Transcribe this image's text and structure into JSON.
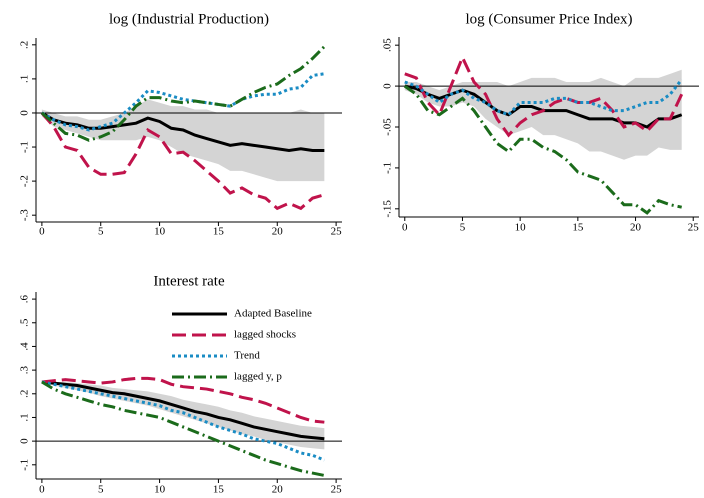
{
  "chart_data": [
    {
      "type": "line",
      "title": "log (Industrial Production)",
      "x": [
        0,
        1,
        2,
        3,
        4,
        5,
        6,
        7,
        8,
        9,
        10,
        11,
        12,
        13,
        14,
        15,
        16,
        17,
        18,
        19,
        20,
        21,
        22,
        23,
        24
      ],
      "xlim": [
        -0.5,
        25.5
      ],
      "xticks": [
        0,
        5,
        10,
        15,
        20,
        25
      ],
      "ylim": [
        -0.32,
        0.22
      ],
      "yticks": [
        {
          "value": 0.2,
          "label": ".2"
        },
        {
          "value": 0.1,
          "label": ".1"
        },
        0,
        {
          "value": -0.1,
          "label": "-.1"
        },
        {
          "value": -0.2,
          "label": "-.2"
        },
        {
          "value": -0.3,
          "label": "-.3"
        }
      ],
      "refline": 0,
      "band_color": "#d4d4d4",
      "band": {
        "upper": [
          0.01,
          0,
          -0.01,
          -0.01,
          -0.02,
          -0.02,
          -0.01,
          0.0,
          0.02,
          0.04,
          0.03,
          0.02,
          0.02,
          0.01,
          0.01,
          0.0,
          0.0,
          0.0,
          0.0,
          0.0,
          0.0,
          0.0,
          0.01,
          0.0,
          0.0
        ],
        "lower": [
          -0.01,
          -0.04,
          -0.05,
          -0.06,
          -0.07,
          -0.08,
          -0.08,
          -0.08,
          -0.08,
          -0.07,
          -0.08,
          -0.1,
          -0.12,
          -0.13,
          -0.14,
          -0.15,
          -0.17,
          -0.17,
          -0.18,
          -0.19,
          -0.2,
          -0.2,
          -0.2,
          -0.2,
          -0.2
        ]
      },
      "series": [
        {
          "color": "#000000",
          "style": "solid",
          "values": [
            0,
            -0.02,
            -0.03,
            -0.035,
            -0.045,
            -0.045,
            -0.04,
            -0.035,
            -0.03,
            -0.015,
            -0.025,
            -0.045,
            -0.05,
            -0.065,
            -0.075,
            -0.085,
            -0.095,
            -0.09,
            -0.095,
            -0.1,
            -0.105,
            -0.11,
            -0.105,
            -0.11,
            -0.11
          ]
        },
        {
          "color": "#c0134b",
          "style": "dash",
          "values": [
            0,
            -0.04,
            -0.1,
            -0.11,
            -0.16,
            -0.18,
            -0.18,
            -0.175,
            -0.12,
            -0.05,
            -0.07,
            -0.12,
            -0.115,
            -0.14,
            -0.17,
            -0.2,
            -0.235,
            -0.22,
            -0.24,
            -0.25,
            -0.28,
            -0.265,
            -0.28,
            -0.25,
            -0.24
          ]
        },
        {
          "color": "#1a8cc4",
          "style": "dot",
          "values": [
            0,
            -0.02,
            -0.035,
            -0.04,
            -0.05,
            -0.04,
            -0.03,
            0.0,
            0.03,
            0.065,
            0.06,
            0.05,
            0.04,
            0.035,
            0.03,
            0.025,
            0.02,
            0.04,
            0.05,
            0.055,
            0.055,
            0.07,
            0.075,
            0.11,
            0.115
          ]
        },
        {
          "color": "#1b6b1b",
          "style": "dashdot",
          "values": [
            0,
            -0.03,
            -0.06,
            -0.065,
            -0.08,
            -0.07,
            -0.055,
            -0.02,
            0.02,
            0.045,
            0.045,
            0.035,
            0.03,
            0.035,
            0.03,
            0.025,
            0.02,
            0.04,
            0.06,
            0.075,
            0.085,
            0.11,
            0.13,
            0.16,
            0.195
          ]
        }
      ]
    },
    {
      "type": "line",
      "title": "log (Consumer Price Index)",
      "x": [
        0,
        1,
        2,
        3,
        4,
        5,
        6,
        7,
        8,
        9,
        10,
        11,
        12,
        13,
        14,
        15,
        16,
        17,
        18,
        19,
        20,
        21,
        22,
        23,
        24
      ],
      "xlim": [
        -0.5,
        25.5
      ],
      "xticks": [
        0,
        5,
        10,
        15,
        20,
        25
      ],
      "ylim": [
        -0.16,
        0.06
      ],
      "yticks": [
        {
          "value": 0.05,
          "label": ".05"
        },
        0,
        {
          "value": -0.05,
          "label": "-.05"
        },
        {
          "value": -0.1,
          "label": "-.1"
        },
        {
          "value": -0.15,
          "label": "-.15"
        }
      ],
      "refline": 0,
      "band_color": "#d4d4d4",
      "band": {
        "upper": [
          0.005,
          0.005,
          0.0,
          -0.005,
          0.0,
          0.005,
          0.005,
          0.005,
          0.005,
          0.0,
          0.005,
          0.01,
          0.01,
          0.01,
          0.005,
          0.005,
          0.005,
          0.01,
          0.005,
          0.0,
          0.01,
          0.01,
          0.01,
          0.015,
          0.02
        ],
        "lower": [
          -0.005,
          -0.01,
          -0.02,
          -0.025,
          -0.025,
          -0.02,
          -0.025,
          -0.04,
          -0.05,
          -0.06,
          -0.055,
          -0.05,
          -0.06,
          -0.06,
          -0.065,
          -0.07,
          -0.08,
          -0.08,
          -0.085,
          -0.09,
          -0.085,
          -0.085,
          -0.075,
          -0.078,
          -0.078
        ]
      },
      "series": [
        {
          "color": "#000000",
          "style": "solid",
          "values": [
            0,
            -0.003,
            -0.01,
            -0.015,
            -0.01,
            -0.005,
            -0.01,
            -0.02,
            -0.03,
            -0.035,
            -0.025,
            -0.025,
            -0.03,
            -0.03,
            -0.03,
            -0.035,
            -0.04,
            -0.04,
            -0.04,
            -0.045,
            -0.045,
            -0.05,
            -0.04,
            -0.04,
            -0.035
          ]
        },
        {
          "color": "#c0134b",
          "style": "dash",
          "values": [
            0.015,
            0.01,
            -0.02,
            -0.035,
            0.0,
            0.035,
            0.005,
            -0.01,
            -0.04,
            -0.06,
            -0.045,
            -0.035,
            -0.03,
            -0.02,
            -0.015,
            -0.02,
            -0.02,
            -0.015,
            -0.03,
            -0.05,
            -0.045,
            -0.055,
            -0.04,
            -0.04,
            -0.01
          ]
        },
        {
          "color": "#1a8cc4",
          "style": "dot",
          "values": [
            0.005,
            0.0,
            -0.01,
            -0.02,
            -0.01,
            -0.005,
            -0.015,
            -0.02,
            -0.03,
            -0.035,
            -0.02,
            -0.02,
            -0.02,
            -0.015,
            -0.015,
            -0.02,
            -0.02,
            -0.025,
            -0.03,
            -0.03,
            -0.025,
            -0.02,
            -0.02,
            -0.01,
            0.008
          ]
        },
        {
          "color": "#1b6b1b",
          "style": "dashdot",
          "values": [
            0,
            -0.01,
            -0.03,
            -0.035,
            -0.025,
            -0.015,
            -0.03,
            -0.05,
            -0.07,
            -0.08,
            -0.065,
            -0.065,
            -0.075,
            -0.08,
            -0.09,
            -0.105,
            -0.11,
            -0.115,
            -0.13,
            -0.145,
            -0.145,
            -0.155,
            -0.14,
            -0.145,
            -0.148
          ]
        }
      ]
    },
    {
      "type": "line",
      "title": "Interest rate",
      "x": [
        0,
        1,
        2,
        3,
        4,
        5,
        6,
        7,
        8,
        9,
        10,
        11,
        12,
        13,
        14,
        15,
        16,
        17,
        18,
        19,
        20,
        21,
        22,
        23,
        24
      ],
      "xlim": [
        -0.5,
        25.5
      ],
      "xticks": [
        0,
        5,
        10,
        15,
        20,
        25
      ],
      "ylim": [
        -0.16,
        0.63
      ],
      "yticks": [
        {
          "value": 0.6,
          "label": ".6"
        },
        {
          "value": 0.5,
          "label": ".5"
        },
        {
          "value": 0.4,
          "label": ".4"
        },
        {
          "value": 0.3,
          "label": ".3"
        },
        {
          "value": 0.2,
          "label": ".2"
        },
        {
          "value": 0.1,
          "label": ".1"
        },
        0,
        {
          "value": -0.1,
          "label": "-.1"
        }
      ],
      "refline": 0,
      "band_color": "#d4d4d4",
      "legend": "upper right",
      "band": {
        "upper": [
          0.25,
          0.25,
          0.25,
          0.245,
          0.24,
          0.235,
          0.225,
          0.22,
          0.215,
          0.21,
          0.2,
          0.19,
          0.175,
          0.165,
          0.155,
          0.145,
          0.13,
          0.12,
          0.105,
          0.095,
          0.085,
          0.075,
          0.065,
          0.06,
          0.055
        ],
        "lower": [
          0.25,
          0.235,
          0.225,
          0.215,
          0.205,
          0.19,
          0.18,
          0.17,
          0.16,
          0.15,
          0.135,
          0.12,
          0.105,
          0.09,
          0.075,
          0.06,
          0.045,
          0.03,
          0.02,
          0.005,
          -0.005,
          -0.015,
          -0.025,
          -0.03,
          -0.035
        ]
      },
      "series": [
        {
          "name": "Adapted Baseline",
          "color": "#000000",
          "style": "solid",
          "values": [
            0.25,
            0.245,
            0.24,
            0.235,
            0.225,
            0.215,
            0.205,
            0.2,
            0.19,
            0.18,
            0.17,
            0.155,
            0.14,
            0.125,
            0.115,
            0.1,
            0.09,
            0.075,
            0.06,
            0.05,
            0.04,
            0.03,
            0.02,
            0.015,
            0.01
          ]
        },
        {
          "name": "lagged shocks",
          "color": "#c0134b",
          "style": "dash",
          "values": [
            0.25,
            0.255,
            0.26,
            0.255,
            0.25,
            0.245,
            0.25,
            0.26,
            0.265,
            0.265,
            0.26,
            0.24,
            0.23,
            0.225,
            0.22,
            0.21,
            0.2,
            0.185,
            0.175,
            0.16,
            0.14,
            0.12,
            0.1,
            0.085,
            0.08
          ]
        },
        {
          "name": "Trend",
          "color": "#1a8cc4",
          "style": "dot",
          "values": [
            0.25,
            0.24,
            0.23,
            0.22,
            0.21,
            0.2,
            0.19,
            0.18,
            0.17,
            0.16,
            0.15,
            0.13,
            0.12,
            0.1,
            0.08,
            0.06,
            0.045,
            0.03,
            0.01,
            0.0,
            -0.01,
            -0.03,
            -0.05,
            -0.06,
            -0.08
          ]
        },
        {
          "name": "lagged y, p",
          "color": "#1b6b1b",
          "style": "dashdot",
          "values": [
            0.25,
            0.22,
            0.2,
            0.185,
            0.17,
            0.155,
            0.145,
            0.13,
            0.12,
            0.11,
            0.1,
            0.08,
            0.06,
            0.04,
            0.02,
            0.0,
            -0.02,
            -0.04,
            -0.06,
            -0.08,
            -0.095,
            -0.11,
            -0.125,
            -0.135,
            -0.145
          ]
        }
      ]
    }
  ]
}
